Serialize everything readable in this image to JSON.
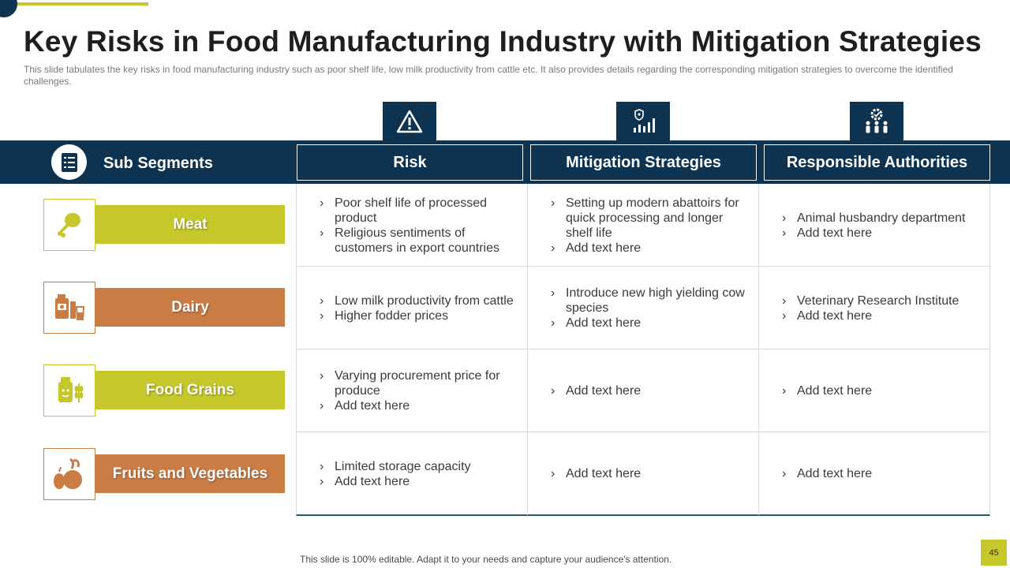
{
  "colors": {
    "navy": "#0d3350",
    "olive": "#c5c72a",
    "orange": "#c97c44",
    "white": "#ffffff"
  },
  "title": "Key Risks in Food Manufacturing Industry with Mitigation Strategies",
  "subtitle": "This slide tabulates the key risks in food manufacturing  industry such as poor shelf life, low milk productivity  from  cattle etc. It also provides  details regarding the corresponding  mitigation strategies to overcome  the identified  challenges.",
  "header": {
    "segments_label": "Sub Segments",
    "columns": [
      "Risk",
      "Mitigation  Strategies",
      "Responsible Authorities"
    ],
    "column_icons": [
      "warning-icon",
      "shield-chart-icon",
      "gear-people-icon"
    ],
    "segments_icon": "checklist-icon"
  },
  "segments": [
    {
      "label": "Meat",
      "icon": "drumstick-icon",
      "color": "#c5c72a"
    },
    {
      "label": "Dairy",
      "icon": "dairy-products-icon",
      "color": "#c97c44"
    },
    {
      "label": "Food Grains",
      "icon": "grains-jar-icon",
      "color": "#c5c72a"
    },
    {
      "label": "Fruits and Vegetables",
      "icon": "fruits-vegetables-icon",
      "color": "#c97c44"
    }
  ],
  "rows": [
    {
      "risk": [
        "Poor shelf life of processed product",
        "Religious sentiments of customers in export countries"
      ],
      "mitigation": [
        "Setting up modern abattoirs for quick processing and longer shelf life",
        "Add text here"
      ],
      "authorities": [
        "Animal husbandry department",
        "Add text here"
      ]
    },
    {
      "risk": [
        "Low milk productivity  from cattle",
        "Higher fodder prices"
      ],
      "mitigation": [
        "Introduce  new high yielding cow species",
        "Add text here"
      ],
      "authorities": [
        "Veterinary Research Institute",
        "Add text here"
      ]
    },
    {
      "risk": [
        "Varying procurement price for produce",
        "Add text here"
      ],
      "mitigation": [
        "Add text here"
      ],
      "authorities": [
        "Add text here"
      ]
    },
    {
      "risk": [
        "Limited storage capacity",
        "Add text here"
      ],
      "mitigation": [
        "Add text here"
      ],
      "authorities": [
        "Add text here"
      ]
    }
  ],
  "footer": "This slide is 100% editable. Adapt it to your needs and capture your audience's attention.",
  "page_number": "45"
}
